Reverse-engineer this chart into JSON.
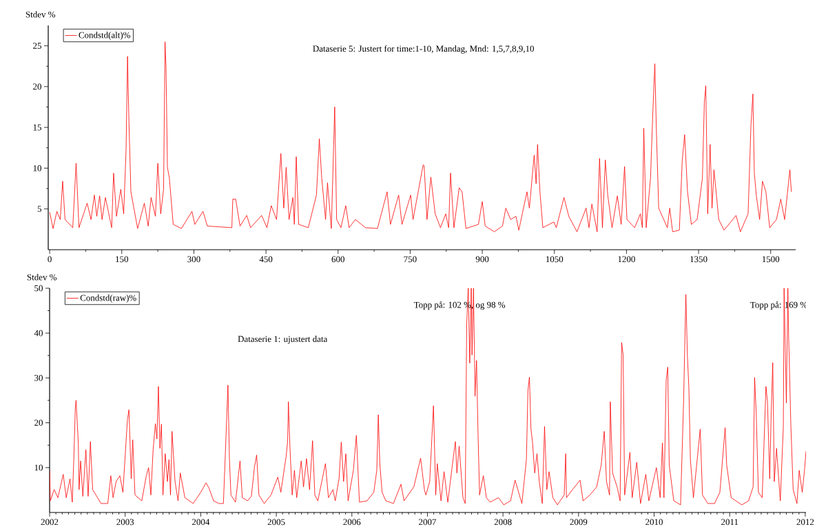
{
  "chart_data": [
    {
      "type": "line",
      "ylabel": "Stdev %",
      "legend": "top left",
      "annotations": [
        "Dataserie 5: Justert for time:1-10, Mandag, Mnd: 1,5,7,8,9,10"
      ],
      "xlim": [
        -3,
        1552
      ],
      "xticks": [
        0,
        150,
        300,
        450,
        600,
        750,
        900,
        1050,
        1200,
        1350,
        1500
      ],
      "ylim": [
        0,
        27.5
      ],
      "yticks": [
        5,
        10,
        15,
        20,
        25
      ],
      "x": [
        0,
        7,
        15,
        22,
        27,
        32,
        48,
        55,
        61,
        78,
        86,
        93,
        98,
        104,
        109,
        116,
        129,
        133,
        139,
        148,
        154,
        159,
        162,
        165,
        169,
        183,
        197,
        205,
        211,
        220,
        225,
        231,
        237,
        240,
        242,
        245,
        249,
        257,
        274,
        296,
        302,
        319,
        328,
        379,
        381,
        387,
        396,
        410,
        418,
        441,
        452,
        461,
        472,
        481,
        487,
        492,
        498,
        506,
        509,
        513,
        518,
        538,
        555,
        561,
        566,
        574,
        578,
        586,
        593,
        597,
        606,
        616,
        623,
        636,
        657,
        682,
        702,
        709,
        726,
        733,
        751,
        756,
        777,
        779,
        785,
        793,
        802,
        813,
        824,
        830,
        834,
        841,
        852,
        858,
        866,
        892,
        900,
        906,
        925,
        942,
        949,
        959,
        970,
        976,
        993,
        998,
        1008,
        1012,
        1015,
        1020,
        1026,
        1049,
        1054,
        1070,
        1080,
        1097,
        1116,
        1122,
        1128,
        1139,
        1144,
        1150,
        1156,
        1161,
        1170,
        1181,
        1189,
        1196,
        1201,
        1217,
        1229,
        1233,
        1236,
        1241,
        1250,
        1255,
        1259,
        1262,
        1267,
        1285,
        1290,
        1296,
        1310,
        1316,
        1321,
        1327,
        1335,
        1347,
        1358,
        1362,
        1365,
        1369,
        1374,
        1378,
        1382,
        1392,
        1403,
        1428,
        1437,
        1453,
        1459,
        1463,
        1466,
        1470,
        1477,
        1483,
        1490,
        1498,
        1512,
        1521,
        1529,
        1540,
        1543
      ],
      "series": [
        {
          "name": "Condstd(alt)%",
          "color": "#ff0000",
          "values": [
            4.6,
            2.6,
            4.7,
            3.7,
            8.4,
            3.7,
            2.7,
            10.6,
            2.7,
            5.7,
            3.7,
            6.7,
            4.1,
            6.6,
            3.7,
            6.4,
            2.7,
            9.4,
            4.1,
            7.4,
            4.4,
            12.4,
            23.7,
            15.5,
            7.1,
            2.6,
            5.7,
            2.9,
            6.4,
            4.1,
            10.6,
            4.4,
            7.4,
            25.5,
            22.5,
            10.1,
            8.8,
            3.1,
            2.6,
            4.7,
            3.1,
            4.7,
            2.9,
            2.7,
            6.2,
            6.2,
            2.9,
            4.2,
            2.7,
            4.2,
            2.7,
            5.4,
            3.7,
            11.8,
            5.1,
            10.1,
            3.7,
            6.4,
            3.1,
            11.4,
            3.1,
            2.7,
            6.7,
            13.6,
            8.8,
            3.7,
            8.2,
            2.6,
            17.5,
            3.7,
            2.7,
            5.4,
            2.7,
            3.7,
            2.7,
            2.6,
            7.1,
            3.1,
            6.7,
            3.1,
            6.7,
            3.7,
            10.4,
            10.3,
            3.7,
            8.9,
            4.4,
            2.7,
            4.4,
            2.7,
            9.4,
            2.7,
            7.6,
            7.1,
            2.6,
            3.1,
            5.9,
            2.9,
            2.2,
            2.9,
            5.1,
            3.7,
            4.1,
            2.4,
            7.1,
            5.1,
            11.6,
            8.1,
            12.9,
            7.1,
            2.7,
            3.4,
            2.7,
            6.4,
            4.1,
            2.2,
            5.1,
            2.7,
            5.6,
            2.2,
            11.2,
            2.7,
            11.0,
            6.7,
            2.7,
            6.6,
            3.1,
            10.2,
            3.7,
            2.7,
            4.4,
            2.7,
            14.9,
            2.7,
            8.8,
            17.1,
            22.8,
            15.1,
            5.1,
            2.7,
            5.1,
            2.2,
            2.4,
            10.9,
            14.1,
            7.1,
            3.1,
            3.7,
            8.8,
            18.1,
            20.1,
            4.4,
            12.9,
            5.1,
            9.8,
            3.7,
            2.4,
            4.2,
            2.2,
            4.4,
            15.3,
            19.1,
            9.4,
            6.7,
            3.7,
            8.4,
            7.1,
            2.7,
            3.7,
            6.2,
            3.7,
            9.8,
            7.1
          ]
        }
      ]
    },
    {
      "type": "line",
      "ylabel": "Stdev %",
      "legend": "top left",
      "annotations": [
        "Topp på: 102 %, og 98 %",
        "Topp på: 169 %",
        "Dataserie 1: ujustert data"
      ],
      "xlim": [
        "2002",
        "2012-01-05"
      ],
      "xticks": [
        "2002",
        "2003",
        "2004",
        "2005",
        "2006",
        "2007",
        "2008",
        "2009",
        "2010",
        "2011",
        "2012"
      ],
      "ylim": [
        0,
        50
      ],
      "yticks": [
        10,
        20,
        30,
        40,
        50
      ],
      "x": [
        "2002-01-01",
        "2002-01-06",
        "2002-01-22",
        "2002-02-11",
        "2002-03-06",
        "2002-03-23",
        "2002-04-09",
        "2002-04-19",
        "2002-04-28",
        "2002-05-04",
        "2002-05-10",
        "2002-05-18",
        "2002-05-24",
        "2002-05-31",
        "2002-06-11",
        "2002-06-27",
        "2002-07-07",
        "2002-07-16",
        "2002-07-27",
        "2002-09-05",
        "2002-10-08",
        "2002-10-25",
        "2002-11-04",
        "2002-11-17",
        "2002-12-07",
        "2002-12-20",
        "2003-01-13",
        "2003-01-21",
        "2003-01-29",
        "2003-02-08",
        "2003-02-18",
        "2003-03-23",
        "2003-04-12",
        "2003-04-25",
        "2003-05-04",
        "2003-05-15",
        "2003-05-28",
        "2003-06-04",
        "2003-06-11",
        "2003-06-17",
        "2003-06-24",
        "2003-07-03",
        "2003-07-14",
        "2003-07-23",
        "2003-07-31",
        "2003-08-09",
        "2003-08-17",
        "2003-08-29",
        "2003-09-12",
        "2003-09-25",
        "2003-10-15",
        "2003-11-24",
        "2004-01-02",
        "2004-01-25",
        "2004-02-11",
        "2004-03-02",
        "2004-03-29",
        "2004-04-21",
        "2004-04-27",
        "2004-05-05",
        "2004-05-11",
        "2004-05-18",
        "2004-05-27",
        "2004-06-16",
        "2004-07-10",
        "2004-07-19",
        "2004-08-15",
        "2004-09-04",
        "2004-09-17",
        "2004-09-28",
        "2004-10-07",
        "2004-11-03",
        "2004-12-06",
        "2005-01-09",
        "2005-01-22",
        "2005-02-18",
        "2005-02-24",
        "2005-03-02",
        "2005-03-09",
        "2005-03-19",
        "2005-03-29",
        "2005-04-11",
        "2005-05-01",
        "2005-05-14",
        "2005-05-27",
        "2005-06-10",
        "2005-06-26",
        "2005-07-06",
        "2005-07-22",
        "2005-08-28",
        "2005-09-11",
        "2005-09-30",
        "2005-10-14",
        "2005-10-31",
        "2005-11-12",
        "2005-11-23",
        "2005-12-02",
        "2005-12-15",
        "2006-01-09",
        "2006-01-22",
        "2006-02-05",
        "2006-03-15",
        "2006-04-18",
        "2006-05-01",
        "2006-05-07",
        "2006-05-15",
        "2006-05-27",
        "2006-06-16",
        "2006-07-19",
        "2006-08-28",
        "2006-09-11",
        "2006-10-27",
        "2006-11-29",
        "2006-12-19",
        "2006-12-24",
        "2007-01-12",
        "2007-01-30",
        "2007-02-09",
        "2007-02-16",
        "2007-03-07",
        "2007-03-21",
        "2007-04-09",
        "2007-04-30",
        "2007-05-15",
        "2007-05-22",
        "2007-06-02",
        "2007-06-21",
        "2007-07-02",
        "2007-07-09",
        "2007-07-16",
        "2007-07-23",
        "2007-07-31",
        "2007-08-03",
        "2007-08-11",
        "2007-08-18",
        "2007-08-25",
        "2007-09-02",
        "2007-09-09",
        "2007-09-27",
        "2007-10-12",
        "2007-10-30",
        "2007-12-09",
        "2008-01-05",
        "2008-02-06",
        "2008-02-27",
        "2008-03-31",
        "2008-04-22",
        "2008-04-29",
        "2008-05-07",
        "2008-05-14",
        "2008-05-21",
        "2008-06-01",
        "2008-06-12",
        "2008-06-23",
        "2008-07-11",
        "2008-07-19",
        "2008-07-30",
        "2008-08-13",
        "2008-08-28",
        "2008-09-19",
        "2008-10-22",
        "2008-10-29",
        "2008-11-05",
        "2008-12-04",
        "2009-01-08",
        "2009-01-23",
        "2009-02-24",
        "2009-03-29",
        "2009-04-20",
        "2009-05-04",
        "2009-05-15",
        "2009-05-30",
        "2009-06-02",
        "2009-06-13",
        "2009-07-05",
        "2009-07-20",
        "2009-07-27",
        "2009-08-03",
        "2009-08-11",
        "2009-09-05",
        "2009-09-16",
        "2009-10-08",
        "2009-10-26",
        "2009-11-21",
        "2009-12-05",
        "2010-01-12",
        "2010-01-30",
        "2010-02-09",
        "2010-02-16",
        "2010-02-27",
        "2010-03-07",
        "2010-03-14",
        "2010-04-05",
        "2010-05-08",
        "2010-05-22",
        "2010-06-02",
        "2010-06-10",
        "2010-06-17",
        "2010-06-24",
        "2010-07-09",
        "2010-08-11",
        "2010-08-22",
        "2010-09-16",
        "2010-10-19",
        "2010-11-14",
        "2010-12-09",
        "2010-12-16",
        "2011-01-08",
        "2011-02-27",
        "2011-04-01",
        "2011-04-23",
        "2011-04-30",
        "2011-05-08",
        "2011-05-19",
        "2011-06-06",
        "2011-06-24",
        "2011-07-02",
        "2011-07-12",
        "2011-07-20",
        "2011-07-27",
        "2011-08-03",
        "2011-08-14",
        "2011-09-02",
        "2011-09-16",
        "2011-09-20",
        "2011-10-01",
        "2011-10-08",
        "2011-10-12",
        "2011-10-23",
        "2011-11-03",
        "2011-11-21",
        "2011-12-02",
        "2011-12-16",
        "2011-12-27",
        "2012-01-04"
      ],
      "series": [
        {
          "name": "Condstd(raw)%",
          "color": "#ff0000",
          "values": [
            9.4,
            2.6,
            5.1,
            3.3,
            8.5,
            3.3,
            7.5,
            2.3,
            11.8,
            23.2,
            25.0,
            15.5,
            5.1,
            11.5,
            3.6,
            14.0,
            3.6,
            15.8,
            5.1,
            2.0,
            2.0,
            8.2,
            3.3,
            6.9,
            8.2,
            4.5,
            20.7,
            22.9,
            7.5,
            16.2,
            3.9,
            2.6,
            8.2,
            10.0,
            3.9,
            14.0,
            19.8,
            16.4,
            28.1,
            14.3,
            19.7,
            3.9,
            13.1,
            6.9,
            11.8,
            3.9,
            18.1,
            6.9,
            2.6,
            8.8,
            3.3,
            2.0,
            4.5,
            6.6,
            5.4,
            2.6,
            2.0,
            2.0,
            10.6,
            19.5,
            28.4,
            11.8,
            3.9,
            2.3,
            11.5,
            3.3,
            2.6,
            3.6,
            10.0,
            12.8,
            3.9,
            2.0,
            3.9,
            7.9,
            4.5,
            12.5,
            15.8,
            24.7,
            14.9,
            3.9,
            9.4,
            3.3,
            11.5,
            5.7,
            12.0,
            5.1,
            16.0,
            3.9,
            2.6,
            10.9,
            3.3,
            5.1,
            2.6,
            7.5,
            15.7,
            6.9,
            13.1,
            2.6,
            9.4,
            17.2,
            2.3,
            2.6,
            4.5,
            9.4,
            21.8,
            10.9,
            4.5,
            2.6,
            2.0,
            6.3,
            2.6,
            5.7,
            12.1,
            5.1,
            3.9,
            6.9,
            23.8,
            3.9,
            10.9,
            2.6,
            9.1,
            2.3,
            10.6,
            15.8,
            8.8,
            14.8,
            3.3,
            2.0,
            42.2,
            50,
            33.3,
            50,
            35.1,
            50,
            25.9,
            33.9,
            17.4,
            3.9,
            8.2,
            3.3,
            2.3,
            3.3,
            1.7,
            2.6,
            7.2,
            2.0,
            11.8,
            27.2,
            30.2,
            18.6,
            15.8,
            8.8,
            13.1,
            6.9,
            2.0,
            19.2,
            5.1,
            9.1,
            3.3,
            1.7,
            3.9,
            13.1,
            3.3,
            5.1,
            7.2,
            2.6,
            3.9,
            5.7,
            10.6,
            18.1,
            6.9,
            3.9,
            24.7,
            8.8,
            5.7,
            2.6,
            37.9,
            35.1,
            3.9,
            13.4,
            3.3,
            11.2,
            2.0,
            8.5,
            2.6,
            10.0,
            3.3,
            15.5,
            3.3,
            29.6,
            32.4,
            10.6,
            2.6,
            1.7,
            24.7,
            48.6,
            35.1,
            27.8,
            11.8,
            3.3,
            18.6,
            3.9,
            2.0,
            2.0,
            4.5,
            18.9,
            10.6,
            3.3,
            1.7,
            2.6,
            5.7,
            30.1,
            22.6,
            4.5,
            3.3,
            28.1,
            24.7,
            7.5,
            22.6,
            33.4,
            6.9,
            14.3,
            2.6,
            19.2,
            50,
            24.4,
            50,
            39.4,
            19.2,
            5.1,
            2.0,
            9.4,
            4.5,
            9.4,
            13.7
          ]
        }
      ]
    }
  ]
}
